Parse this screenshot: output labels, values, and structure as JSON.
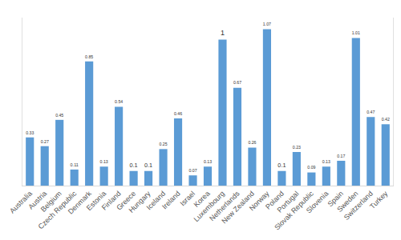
{
  "chart_data": {
    "type": "bar",
    "categories": [
      "Australia",
      "Austria",
      "Belgium",
      "Czech Republic",
      "Denmark",
      "Estonia",
      "Finland",
      "Greece",
      "Hungary",
      "Iceland",
      "Ireland",
      "Israel",
      "Korea",
      "Luxembourg",
      "Netherlands",
      "New Zealand",
      "Norway",
      "Poland",
      "Portugal",
      "Slovak Republic",
      "Slovenia",
      "Spain",
      "Sweden",
      "Switzerland",
      "Turkey"
    ],
    "values": [
      0.33,
      0.27,
      0.45,
      0.11,
      0.85,
      0.13,
      0.54,
      0.1,
      0.1,
      0.25,
      0.46,
      0.07,
      0.13,
      1,
      0.67,
      0.26,
      1.07,
      0.1,
      0.23,
      0.09,
      0.13,
      0.17,
      1.01,
      0.47,
      0.42
    ],
    "color": "#5b9bd5",
    "ylim": [
      0,
      1.15
    ],
    "grid": false,
    "data_labels": true,
    "tick_labels": "x"
  }
}
